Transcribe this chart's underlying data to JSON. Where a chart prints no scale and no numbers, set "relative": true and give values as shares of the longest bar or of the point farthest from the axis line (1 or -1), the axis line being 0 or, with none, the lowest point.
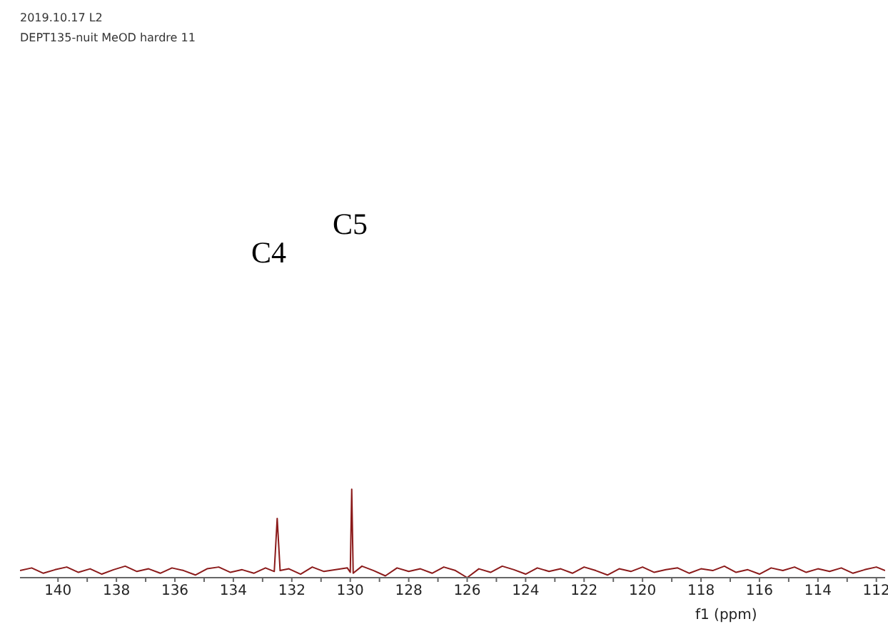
{
  "chart_data": {
    "type": "line",
    "title": "2019.10.17 L2",
    "subtitle": "DEPT135-nuit MeOD hardre 11",
    "xlabel": "f1 (ppm)",
    "relative": true,
    "annotations": [
      "C4",
      "C5"
    ],
    "x": [
      141.3,
      140.9,
      140.5,
      140.1,
      139.7,
      139.3,
      138.9,
      138.5,
      138.1,
      137.7,
      137.3,
      136.9,
      136.5,
      136.1,
      135.7,
      135.3,
      134.9,
      134.5,
      134.1,
      133.7,
      133.3,
      132.9,
      132.6,
      132.5,
      132.4,
      132.1,
      131.7,
      131.3,
      130.9,
      130.5,
      130.1,
      130.0,
      129.95,
      129.9,
      129.6,
      129.2,
      128.8,
      128.4,
      128.0,
      127.6,
      127.2,
      126.8,
      126.4,
      126.0,
      125.6,
      125.2,
      124.8,
      124.4,
      124.0,
      123.6,
      123.2,
      122.8,
      122.4,
      122.0,
      121.6,
      121.2,
      120.8,
      120.4,
      120.0,
      119.6,
      119.2,
      118.8,
      118.4,
      118.0,
      117.6,
      117.2,
      116.8,
      116.4,
      116.0,
      115.6,
      115.2,
      114.8,
      114.4,
      114.0,
      113.6,
      113.2,
      112.8,
      112.4,
      112.0,
      111.7
    ],
    "series": [
      {
        "color": "#8b1a1a",
        "values": [
          0.08,
          0.11,
          0.05,
          0.09,
          0.12,
          0.06,
          0.1,
          0.04,
          0.09,
          0.13,
          0.07,
          0.1,
          0.05,
          0.11,
          0.08,
          0.03,
          0.1,
          0.12,
          0.06,
          0.09,
          0.05,
          0.11,
          0.07,
          0.67,
          0.08,
          0.1,
          0.04,
          0.12,
          0.07,
          0.09,
          0.11,
          0.06,
          1,
          0.05,
          0.13,
          0.08,
          0.02,
          0.11,
          0.07,
          0.1,
          0.05,
          0.12,
          0.08,
          0.0,
          0.1,
          0.06,
          0.13,
          0.09,
          0.04,
          0.11,
          0.07,
          0.1,
          0.05,
          0.12,
          0.08,
          0.03,
          0.1,
          0.07,
          0.12,
          0.06,
          0.09,
          0.11,
          0.05,
          0.1,
          0.08,
          0.13,
          0.06,
          0.09,
          0.04,
          0.11,
          0.08,
          0.12,
          0.06,
          0.1,
          0.07,
          0.11,
          0.05,
          0.09,
          0.12,
          0.08
        ]
      }
    ],
    "xlim": [
      141.3,
      111.7
    ],
    "xticks": [
      140,
      {
        "value": 139,
        "label": null
      },
      138,
      {
        "value": 137,
        "label": null
      },
      136,
      {
        "value": 135,
        "label": null
      },
      134,
      {
        "value": 133,
        "label": null
      },
      132,
      {
        "value": 131,
        "label": null
      },
      130,
      {
        "value": 129,
        "label": null
      },
      128,
      {
        "value": 127,
        "label": null
      },
      126,
      {
        "value": 125,
        "label": null
      },
      124,
      {
        "value": 123,
        "label": null
      },
      122,
      {
        "value": 121,
        "label": null
      },
      120,
      {
        "value": 119,
        "label": null
      },
      118,
      {
        "value": 117,
        "label": null
      },
      116,
      {
        "value": 115,
        "label": null
      },
      114,
      {
        "value": 113,
        "label": null
      },
      112
    ],
    "tick_labels": "x",
    "marker": "none",
    "line_style": "solid"
  }
}
